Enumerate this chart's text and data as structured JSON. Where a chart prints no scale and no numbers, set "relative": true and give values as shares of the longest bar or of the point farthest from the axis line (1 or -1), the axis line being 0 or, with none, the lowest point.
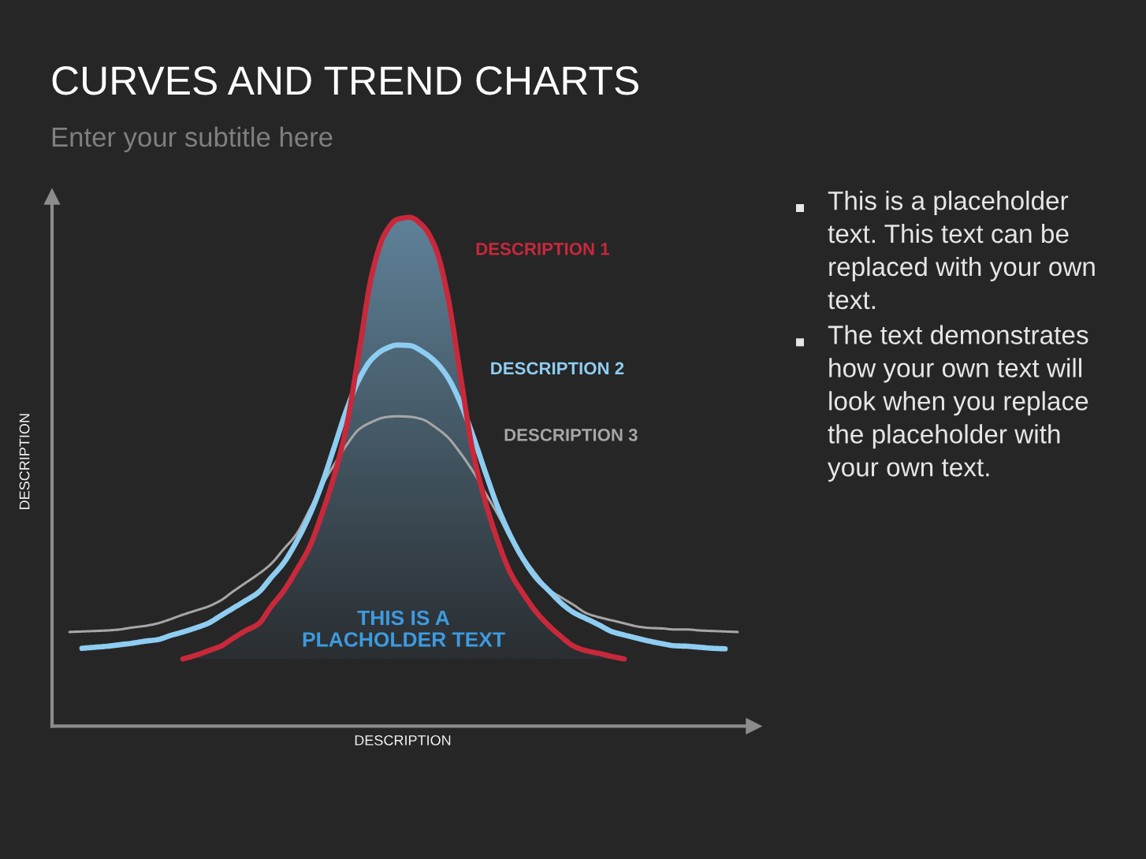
{
  "chart_data": {
    "type": "line",
    "title": "CURVES AND TREND CHARTS",
    "subtitle": "Enter your subtitle here",
    "xlabel": "DESCRIPTION",
    "ylabel": "DESCRIPTION",
    "relative": true,
    "categories": [
      null,
      null,
      null,
      null,
      null,
      null,
      null,
      null,
      null,
      null,
      null,
      null,
      null,
      null,
      null,
      null,
      null,
      null,
      null,
      null,
      null,
      null,
      null,
      null,
      null,
      null,
      null,
      null,
      null,
      null,
      null,
      null,
      null,
      null,
      null,
      null,
      null,
      null,
      null,
      null,
      null,
      null,
      null,
      null,
      null,
      null,
      null,
      null,
      null,
      null,
      null,
      null,
      null,
      null
    ],
    "series": [
      {
        "name": "DESCRIPTION 1",
        "color": "#c9283b",
        "values": [
          null,
          null,
          null,
          null,
          null,
          null,
          null,
          null,
          null,
          0.132,
          0.139,
          0.148,
          0.157,
          0.173,
          0.188,
          0.201,
          0.235,
          0.266,
          0.306,
          0.35,
          0.415,
          0.492,
          0.592,
          0.74,
          0.889,
          0.967,
          0.996,
          1.0,
          0.984,
          0.942,
          0.846,
          0.691,
          0.539,
          0.44,
          0.362,
          0.3,
          0.26,
          0.225,
          0.198,
          0.176,
          0.157,
          0.148,
          0.143,
          0.137,
          0.132,
          null,
          null,
          null,
          null,
          null,
          null,
          null,
          null,
          null
        ]
      },
      {
        "name": "DESCRIPTION 2",
        "color": "#8ecdf2",
        "values": [
          null,
          0.153,
          0.155,
          0.157,
          0.16,
          0.163,
          0.167,
          0.17,
          0.178,
          0.185,
          0.193,
          0.202,
          0.217,
          0.232,
          0.247,
          0.263,
          0.292,
          0.321,
          0.362,
          0.412,
          0.474,
          0.548,
          0.623,
          0.683,
          0.722,
          0.741,
          0.749,
          0.748,
          0.736,
          0.717,
          0.686,
          0.636,
          0.571,
          0.498,
          0.429,
          0.373,
          0.328,
          0.292,
          0.267,
          0.242,
          0.223,
          0.211,
          0.199,
          0.186,
          0.179,
          0.173,
          0.167,
          0.162,
          0.158,
          0.157,
          0.155,
          0.153,
          0.152,
          null
        ]
      },
      {
        "name": "DESCRIPTION 3",
        "color": "#a6a6a6",
        "values": [
          0.185,
          0.186,
          0.187,
          0.188,
          0.19,
          0.194,
          0.197,
          0.202,
          0.21,
          0.219,
          0.227,
          0.235,
          0.247,
          0.265,
          0.282,
          0.299,
          0.319,
          0.348,
          0.377,
          0.423,
          0.471,
          0.514,
          0.553,
          0.584,
          0.598,
          0.607,
          0.609,
          0.608,
          0.603,
          0.588,
          0.568,
          0.537,
          0.501,
          0.458,
          0.415,
          0.368,
          0.332,
          0.299,
          0.269,
          0.253,
          0.238,
          0.222,
          0.214,
          0.208,
          0.202,
          0.196,
          0.193,
          0.192,
          0.19,
          0.19,
          0.188,
          0.187,
          0.186,
          0.185
        ]
      }
    ],
    "annotations": [
      "THIS IS A\nPLACHOLDER TEXT",
      "This is a placeholder text. This text can be replaced with your own text.",
      "The text demonstrates how your own text will look when you replace the placeholder with your own text."
    ]
  }
}
